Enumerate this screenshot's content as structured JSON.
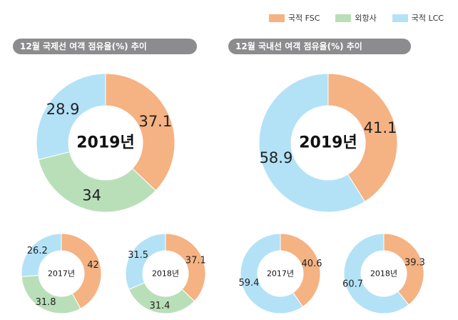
{
  "legend": {
    "items": [
      {
        "label": "국적 FSC",
        "color": "#f5b282"
      },
      {
        "label": "외항사",
        "color": "#b9dfb9"
      },
      {
        "label": "국적 LCC",
        "color": "#b3e2f6"
      }
    ]
  },
  "sections": {
    "international": {
      "title": "12월 국제선 여객 점유율(%) 추이"
    },
    "domestic": {
      "title": "12월 국내선 여객 점유율(%) 추이"
    }
  },
  "chart_data": [
    {
      "type": "pie",
      "section": "international",
      "center_label": "2019년",
      "categories": [
        "국적 FSC",
        "외항사",
        "국적 LCC"
      ],
      "values": [
        37.1,
        34,
        28.9
      ],
      "labels": [
        "37.1",
        "34",
        "28.9"
      ]
    },
    {
      "type": "pie",
      "section": "domestic",
      "center_label": "2019년",
      "categories": [
        "국적 FSC",
        "국적 LCC"
      ],
      "values": [
        41.1,
        58.9
      ],
      "labels": [
        "41.1",
        "58.9"
      ]
    },
    {
      "type": "pie",
      "section": "international",
      "center_label": "2017년",
      "categories": [
        "국적 FSC",
        "외항사",
        "국적 LCC"
      ],
      "values": [
        42,
        31.8,
        26.2
      ],
      "labels": [
        "42",
        "31.8",
        "26.2"
      ]
    },
    {
      "type": "pie",
      "section": "international",
      "center_label": "2018년",
      "categories": [
        "국적 FSC",
        "외항사",
        "국적 LCC"
      ],
      "values": [
        37.1,
        31.4,
        31.5
      ],
      "labels": [
        "37.1",
        "31.4",
        "31.5"
      ]
    },
    {
      "type": "pie",
      "section": "domestic",
      "center_label": "2017년",
      "categories": [
        "국적 FSC",
        "국적 LCC"
      ],
      "values": [
        40.6,
        59.4
      ],
      "labels": [
        "40.6",
        "59.4"
      ]
    },
    {
      "type": "pie",
      "section": "domestic",
      "center_label": "2018년",
      "categories": [
        "국적 FSC",
        "국적 LCC"
      ],
      "values": [
        39.3,
        60.7
      ],
      "labels": [
        "39.3",
        "60.7"
      ]
    }
  ]
}
